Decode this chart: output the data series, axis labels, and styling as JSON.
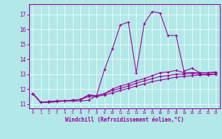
{
  "title": "",
  "xlabel": "Windchill (Refroidissement éolien,°C)",
  "ylabel": "",
  "background_color": "#b2e8e8",
  "line_color": "#990099",
  "xlim": [
    -0.5,
    23.5
  ],
  "ylim": [
    10.7,
    17.7
  ],
  "yticks": [
    11,
    12,
    13,
    14,
    15,
    16,
    17
  ],
  "xticks": [
    0,
    1,
    2,
    3,
    4,
    5,
    6,
    7,
    8,
    9,
    10,
    11,
    12,
    13,
    14,
    15,
    16,
    17,
    18,
    19,
    20,
    21,
    22,
    23
  ],
  "series": {
    "s1": [
      0,
      1,
      2,
      3,
      4,
      5,
      6,
      7,
      8,
      9,
      10,
      11,
      12,
      13,
      14,
      15,
      16,
      17,
      18,
      19,
      20,
      21,
      22,
      23
    ],
    "line1": [
      11.7,
      11.1,
      11.1,
      11.15,
      11.2,
      11.2,
      11.2,
      11.25,
      11.55,
      13.3,
      14.7,
      16.3,
      16.5,
      13.1,
      16.4,
      17.2,
      17.1,
      15.6,
      15.6,
      13.2,
      13.4,
      13.1,
      13.1,
      13.15
    ],
    "line2": [
      11.7,
      11.1,
      11.15,
      11.2,
      11.2,
      11.25,
      11.3,
      11.6,
      11.55,
      11.7,
      12.0,
      12.2,
      12.35,
      12.55,
      12.7,
      12.9,
      13.1,
      13.15,
      13.25,
      13.1,
      13.1,
      13.1,
      13.1,
      13.1
    ],
    "line3": [
      11.7,
      11.1,
      11.15,
      11.2,
      11.2,
      11.25,
      11.3,
      11.6,
      11.55,
      11.7,
      11.9,
      12.05,
      12.2,
      12.4,
      12.55,
      12.7,
      12.85,
      12.9,
      13.0,
      13.0,
      13.05,
      13.0,
      13.0,
      13.0
    ],
    "line4": [
      11.7,
      11.1,
      11.15,
      11.2,
      11.2,
      11.25,
      11.3,
      11.5,
      11.5,
      11.6,
      11.75,
      11.9,
      12.05,
      12.2,
      12.35,
      12.5,
      12.6,
      12.7,
      12.8,
      12.85,
      12.9,
      12.95,
      12.95,
      13.0
    ]
  }
}
